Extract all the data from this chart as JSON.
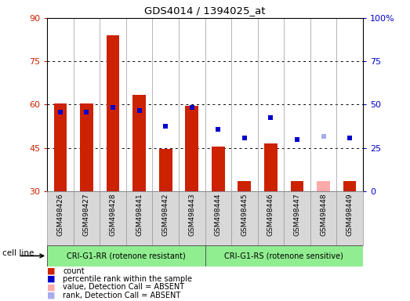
{
  "title": "GDS4014 / 1394025_at",
  "samples": [
    "GSM498426",
    "GSM498427",
    "GSM498428",
    "GSM498441",
    "GSM498442",
    "GSM498443",
    "GSM498444",
    "GSM498445",
    "GSM498446",
    "GSM498447",
    "GSM498448",
    "GSM498449"
  ],
  "count_values": [
    60.5,
    60.5,
    84.0,
    63.5,
    44.5,
    59.5,
    45.5,
    33.5,
    46.5,
    33.5,
    null,
    33.5
  ],
  "count_absent": [
    null,
    null,
    null,
    null,
    null,
    null,
    null,
    null,
    null,
    null,
    33.5,
    null
  ],
  "rank_values": [
    57.5,
    57.5,
    59.0,
    58.0,
    52.5,
    59.0,
    51.5,
    48.5,
    55.5,
    48.0,
    null,
    48.5
  ],
  "rank_absent": [
    null,
    null,
    null,
    null,
    null,
    null,
    null,
    null,
    null,
    null,
    49.0,
    null
  ],
  "group1_count": 6,
  "group2_count": 6,
  "group1_label": "CRI-G1-RR (rotenone resistant)",
  "group2_label": "CRI-G1-RS (rotenone sensitive)",
  "cell_line_label": "cell line",
  "ylim_left": [
    30,
    90
  ],
  "ylim_right": [
    0,
    100
  ],
  "yticks_left": [
    30,
    45,
    60,
    75,
    90
  ],
  "yticks_right": [
    0,
    25,
    50,
    75,
    100
  ],
  "ytick_labels_right": [
    "0",
    "25",
    "50",
    "75",
    "100%"
  ],
  "bar_color": "#cc2200",
  "bar_absent_color": "#ffaaaa",
  "rank_color": "#0000cc",
  "rank_absent_color": "#aaaaee",
  "group_bg": "#90ee90",
  "tick_label_color_left": "#cc2200",
  "tick_label_color_right": "#0000cc",
  "col_bg": "#d8d8d8",
  "legend_items": [
    {
      "color": "#cc2200",
      "label": "count"
    },
    {
      "color": "#0000cc",
      "label": "percentile rank within the sample"
    },
    {
      "color": "#ffaaaa",
      "label": "value, Detection Call = ABSENT"
    },
    {
      "color": "#aaaaee",
      "label": "rank, Detection Call = ABSENT"
    }
  ]
}
